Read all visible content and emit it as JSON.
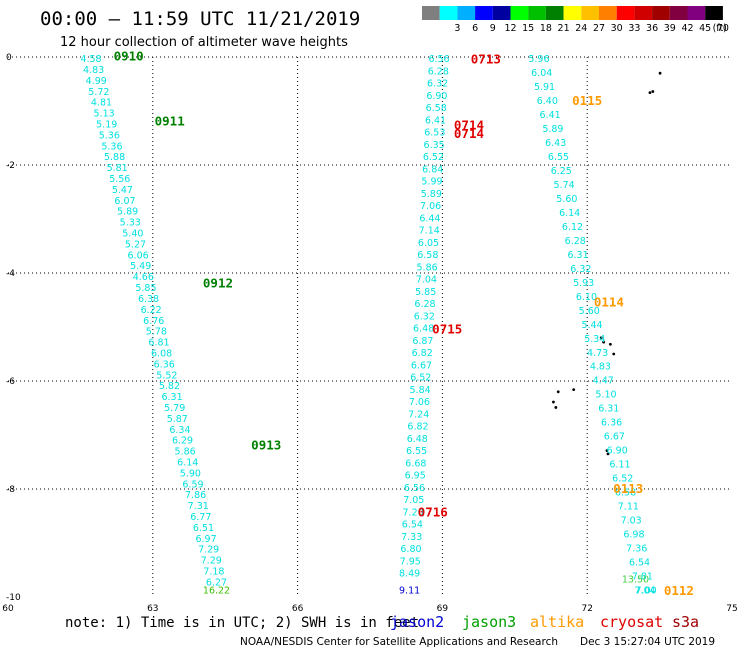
{
  "header": {
    "title": "00:00 – 11:59 UTC 11/21/2019",
    "subtitle": "12 hour collection of altimeter wave heights"
  },
  "legend": {
    "unit": "(ft)",
    "bins": [
      {
        "label": "",
        "color": "#7f7f7f"
      },
      {
        "label": "3",
        "color": "#00ffff"
      },
      {
        "label": "6",
        "color": "#00b0ff"
      },
      {
        "label": "9",
        "color": "#0000ff"
      },
      {
        "label": "12",
        "color": "#0000a0"
      },
      {
        "label": "15",
        "color": "#00ff00"
      },
      {
        "label": "18",
        "color": "#00c000"
      },
      {
        "label": "21",
        "color": "#008000"
      },
      {
        "label": "24",
        "color": "#ffff00"
      },
      {
        "label": "27",
        "color": "#ffc000"
      },
      {
        "label": "30",
        "color": "#ff8000"
      },
      {
        "label": "33",
        "color": "#ff0000"
      },
      {
        "label": "36",
        "color": "#d00000"
      },
      {
        "label": "39",
        "color": "#a00000"
      },
      {
        "label": "42",
        "color": "#800040"
      },
      {
        "label": "45",
        "color": "#800080"
      },
      {
        "label": "70",
        "color": "#000000"
      }
    ]
  },
  "footer": {
    "note": "note: 1) Time is in UTC; 2) SWH is in feet",
    "credit": "NOAA/NESDIS Center for Satellite Applications and Research",
    "timestamp": "Dec  3 15:27:04 UTC 2019",
    "satellites": [
      {
        "name": "jason2",
        "color": "#0000d0"
      },
      {
        "name": "jason3",
        "color": "#00a000"
      },
      {
        "name": "altika",
        "color": "#ff9900"
      },
      {
        "name": "cryosat",
        "color": "#e00000"
      },
      {
        "name": "s3a",
        "color": "#a00000"
      }
    ]
  },
  "chart_data": {
    "type": "scatter",
    "xlim": [
      60,
      75
    ],
    "ylim": [
      -10,
      0
    ],
    "x_ticks": [
      "60",
      "63",
      "66",
      "69",
      "72",
      "75"
    ],
    "y_ticks": [
      "0",
      "-2",
      "-4",
      "-6",
      "-8",
      "-10"
    ],
    "grid": true,
    "tracks": [
      {
        "color": "#00e0e0",
        "lon_start": 61.72,
        "lat_start": -0.03,
        "lon_end": 64.32,
        "lat_end": -9.72,
        "values": [
          "4.58",
          "4.83",
          "4.99",
          "5.72",
          "4.81",
          "5.13",
          "5.19",
          "5.36",
          "5.36",
          "5.88",
          "5.81",
          "5.56",
          "5.47",
          "6.07",
          "5.89",
          "5.33",
          "5.40",
          "5.27",
          "6.06",
          "5.49",
          "4.66",
          "5.85",
          "6.38",
          "6.22",
          "6.76",
          "5.78",
          "6.81",
          "6.08",
          "6.36",
          "5.52",
          "5.82",
          "6.31",
          "5.79",
          "5.87",
          "6.34",
          "6.29",
          "5.86",
          "6.14",
          "5.90",
          "6.59",
          "7.86",
          "7.31",
          "6.77",
          "6.51",
          "6.97",
          "7.29",
          "7.29",
          "7.18",
          "6.27"
        ]
      },
      {
        "color": "#40c000",
        "lon_start": 64.32,
        "lat_start": -9.87,
        "lon_end": 64.32,
        "lat_end": -9.87,
        "values": [
          "16.22"
        ]
      },
      {
        "color": "#00e0e0",
        "lon_start": 68.93,
        "lat_start": -0.03,
        "lon_end": 68.32,
        "lat_end": -9.56,
        "values": [
          "6.56",
          "6.28",
          "6.32",
          "6.90",
          "6.58",
          "6.41",
          "6.53",
          "6.35",
          "6.52",
          "6.84",
          "5.99",
          "5.89",
          "7.06",
          "6.44",
          "7.14",
          "6.05",
          "6.58",
          "5.86",
          "7.04",
          "5.85",
          "6.28",
          "6.32",
          "6.48",
          "6.87",
          "6.82",
          "6.67",
          "6.52",
          "5.84",
          "7.06",
          "7.24",
          "6.82",
          "6.48",
          "6.55",
          "6.68",
          "6.95",
          "6.56",
          "7.05",
          "7.20",
          "6.54",
          "7.33",
          "6.80",
          "7.95",
          "8.49"
        ]
      },
      {
        "color": "#0000d0",
        "lon_start": 68.32,
        "lat_start": -9.87,
        "lon_end": 68.32,
        "lat_end": -9.87,
        "values": [
          "9.11"
        ]
      },
      {
        "color": "#00e0e0",
        "lon_start": 71.0,
        "lat_start": -0.03,
        "lon_end": 73.2,
        "lat_end": -9.87,
        "values": [
          "5.96",
          "6.04",
          "5.91",
          "6.40",
          "6.41",
          "5.89",
          "6.43",
          "6.55",
          "6.25",
          "5.74",
          "5.60",
          "6.14",
          "6.12",
          "6.28",
          "6.31",
          "6.32",
          "5.93",
          "6.10",
          "5.60",
          "5.44",
          "5.34",
          "4.73",
          "4.83",
          "4.47",
          "5.10",
          "6.31",
          "6.36",
          "6.67",
          "6.90",
          "6.11",
          "6.52",
          "6.58",
          "7.11",
          "7.03",
          "6.98",
          "7.36",
          "6.54",
          "7.81",
          "7.04"
        ]
      },
      {
        "color": "#40d040",
        "lon_start": 73.0,
        "lat_start": -9.67,
        "lon_end": 73.0,
        "lat_end": -9.67,
        "values": [
          "13.50"
        ]
      },
      {
        "color": "#00e0e0",
        "lon_start": 73.22,
        "lat_start": -9.87,
        "lon_end": 73.22,
        "lat_end": -9.87,
        "values": [
          "7.00"
        ]
      }
    ],
    "time_labels": [
      {
        "text": "0910",
        "lon": 62.5,
        "lat": 0.03,
        "color": "#008000"
      },
      {
        "text": "0911",
        "lon": 63.35,
        "lat": -1.18,
        "color": "#008000"
      },
      {
        "text": "0912",
        "lon": 64.35,
        "lat": -4.18,
        "color": "#008000"
      },
      {
        "text": "0913",
        "lon": 65.35,
        "lat": -7.18,
        "color": "#008000"
      },
      {
        "text": "0713",
        "lon": 69.9,
        "lat": -0.03,
        "color": "#e00000"
      },
      {
        "text": "0714",
        "lon": 69.55,
        "lat": -1.25,
        "color": "#e00000"
      },
      {
        "text": "0714",
        "lon": 69.55,
        "lat": -1.41,
        "color": "#e00000"
      },
      {
        "text": "0715",
        "lon": 69.1,
        "lat": -5.03,
        "color": "#e00000"
      },
      {
        "text": "0716",
        "lon": 68.8,
        "lat": -8.42,
        "color": "#e00000"
      },
      {
        "text": "0115",
        "lon": 72.0,
        "lat": -0.8,
        "color": "#ff9900"
      },
      {
        "text": "0114",
        "lon": 72.45,
        "lat": -4.53,
        "color": "#ff9900"
      },
      {
        "text": "0113",
        "lon": 72.85,
        "lat": -7.98,
        "color": "#ff9900"
      },
      {
        "text": "0112",
        "lon": 73.9,
        "lat": -9.87,
        "color": "#ff9900"
      }
    ],
    "land_marks": [
      {
        "lon": 73.51,
        "lat": -0.3
      },
      {
        "lon": 73.3,
        "lat": -0.66
      },
      {
        "lon": 73.36,
        "lat": -0.64
      },
      {
        "lon": 72.29,
        "lat": -5.2
      },
      {
        "lon": 72.34,
        "lat": -5.28
      },
      {
        "lon": 72.55,
        "lat": -5.5
      },
      {
        "lon": 72.48,
        "lat": -5.32
      },
      {
        "lon": 71.3,
        "lat": -6.39
      },
      {
        "lon": 71.35,
        "lat": -6.49
      },
      {
        "lon": 71.4,
        "lat": -6.2
      },
      {
        "lon": 71.72,
        "lat": -6.16
      },
      {
        "lon": 72.41,
        "lat": -7.29
      },
      {
        "lon": 72.43,
        "lat": -7.35
      }
    ]
  }
}
